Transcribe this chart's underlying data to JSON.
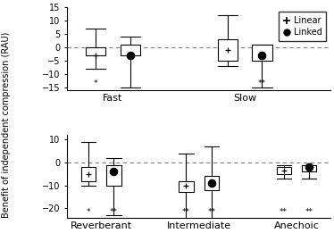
{
  "top_panel": {
    "ylim": [
      -16,
      15
    ],
    "yticks": [
      -15,
      -10,
      -5,
      0,
      5,
      10,
      15
    ],
    "groups": [
      "Fast",
      "Slow"
    ],
    "linear": [
      {
        "whislo": -8,
        "q1": -3,
        "med": -2,
        "q3": 0,
        "whishi": 7,
        "mean": -3
      },
      {
        "whislo": -7,
        "q1": -5,
        "med": -1,
        "q3": 3,
        "whishi": 12,
        "mean": -1
      }
    ],
    "linked": [
      {
        "whislo": -15,
        "q1": -3,
        "med": -2,
        "q3": 1,
        "whishi": 4,
        "mean": -3
      },
      {
        "whislo": -15,
        "q1": -5,
        "med": -3,
        "q3": 1,
        "whishi": 1,
        "mean": -3
      }
    ],
    "sig_linear": [
      "*",
      ""
    ],
    "sig_linked": [
      "",
      "**"
    ]
  },
  "bottom_panel": {
    "ylim": [
      -24,
      12
    ],
    "yticks": [
      -20,
      -10,
      0,
      10
    ],
    "groups": [
      "Reverberant",
      "Intermediate",
      "Anechoic"
    ],
    "linear": [
      {
        "whislo": -10,
        "q1": -8,
        "med": -5,
        "q3": -2,
        "whishi": 9,
        "mean": -5
      },
      {
        "whislo": -25,
        "q1": -13,
        "med": -10,
        "q3": -8,
        "whishi": 4,
        "mean": -10
      },
      {
        "whislo": -7,
        "q1": -5,
        "med": -3,
        "q3": -2,
        "whishi": -1,
        "mean": -3.5
      }
    ],
    "linked": [
      {
        "whislo": -23,
        "q1": -10,
        "med": -4,
        "q3": -1,
        "whishi": 2,
        "mean": -4
      },
      {
        "whislo": -25,
        "q1": -12,
        "med": -9,
        "q3": -6,
        "whishi": 7,
        "mean": -9
      },
      {
        "whislo": -7,
        "q1": -4,
        "med": -2,
        "q3": -1,
        "whishi": -1,
        "mean": -2
      }
    ],
    "sig_linear": [
      "*",
      "**",
      "**"
    ],
    "sig_linked": [
      "**",
      "**",
      "**"
    ]
  },
  "ylabel": "Benefit of independent compression (RAU)",
  "group_sep": 0.13,
  "box_width": 0.15
}
